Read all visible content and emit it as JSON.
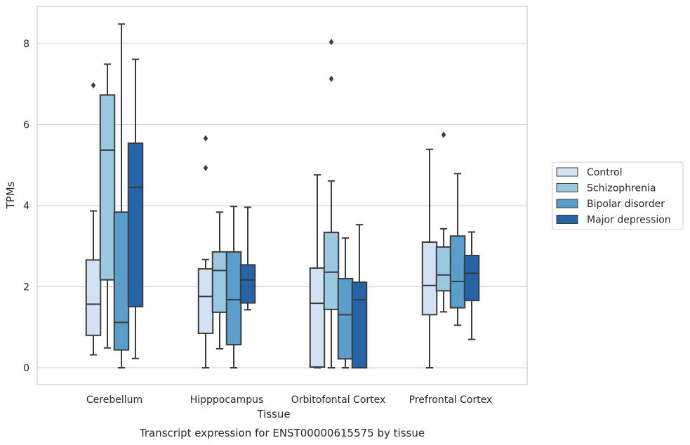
{
  "chart_data": {
    "type": "box",
    "caption": "Transcript expression for ENST00000615575 by tissue",
    "xlabel": "Tissue",
    "ylabel": "TPMs",
    "ylim": [
      -0.4,
      8.9
    ],
    "yticks": [
      0,
      2,
      4,
      6,
      8
    ],
    "grid": true,
    "legend_position": "right",
    "categories": [
      "Cerebellum",
      "Hipppocampus",
      "Orbitofontal Cortex",
      "Prefrontal Cortex"
    ],
    "series": [
      {
        "name": "Control",
        "color": "#d1e2f2",
        "boxes": [
          {
            "whislo": 0.32,
            "q1": 0.8,
            "med": 1.57,
            "q3": 2.66,
            "whishi": 3.87,
            "fliers": [
              6.97
            ]
          },
          {
            "whislo": 0.0,
            "q1": 0.85,
            "med": 1.76,
            "q3": 2.44,
            "whishi": 2.67,
            "fliers": [
              5.66,
              4.93
            ]
          },
          {
            "whislo": 0.0,
            "q1": 0.02,
            "med": 1.59,
            "q3": 2.46,
            "whishi": 4.76,
            "fliers": []
          },
          {
            "whislo": 0.0,
            "q1": 1.31,
            "med": 2.03,
            "q3": 3.1,
            "whishi": 5.39,
            "fliers": []
          }
        ]
      },
      {
        "name": "Schizophrenia",
        "color": "#9ac8e0",
        "boxes": [
          {
            "whislo": 0.49,
            "q1": 2.17,
            "med": 5.37,
            "q3": 6.73,
            "whishi": 7.49,
            "fliers": []
          },
          {
            "whislo": 0.47,
            "q1": 1.37,
            "med": 2.4,
            "q3": 2.86,
            "whishi": 3.84,
            "fliers": []
          },
          {
            "whislo": 0.0,
            "q1": 1.44,
            "med": 2.36,
            "q3": 3.34,
            "whishi": 4.61,
            "fliers": [
              8.04,
              7.13
            ]
          },
          {
            "whislo": 1.38,
            "q1": 1.9,
            "med": 2.29,
            "q3": 2.98,
            "whishi": 3.43,
            "fliers": [
              5.75
            ]
          }
        ]
      },
      {
        "name": "Bipolar disorder",
        "color": "#5a9ecb",
        "boxes": [
          {
            "whislo": 0.0,
            "q1": 0.44,
            "med": 1.12,
            "q3": 3.84,
            "whishi": 8.48,
            "fliers": []
          },
          {
            "whislo": 0.0,
            "q1": 0.57,
            "med": 1.68,
            "q3": 2.86,
            "whishi": 3.98,
            "fliers": []
          },
          {
            "whislo": 0.0,
            "q1": 0.22,
            "med": 1.31,
            "q3": 2.2,
            "whishi": 3.2,
            "fliers": []
          },
          {
            "whislo": 1.05,
            "q1": 1.48,
            "med": 2.13,
            "q3": 3.25,
            "whishi": 4.79,
            "fliers": []
          }
        ]
      },
      {
        "name": "Major depression",
        "color": "#2565a7",
        "boxes": [
          {
            "whislo": 0.23,
            "q1": 1.51,
            "med": 4.45,
            "q3": 5.54,
            "whishi": 7.61,
            "fliers": []
          },
          {
            "whislo": 1.43,
            "q1": 1.6,
            "med": 2.17,
            "q3": 2.54,
            "whishi": 3.96,
            "fliers": []
          },
          {
            "whislo": 0.0,
            "q1": 0.0,
            "med": 1.68,
            "q3": 2.11,
            "whishi": 3.53,
            "fliers": []
          },
          {
            "whislo": 0.7,
            "q1": 1.66,
            "med": 2.33,
            "q3": 2.77,
            "whishi": 3.35,
            "fliers": []
          }
        ]
      }
    ]
  }
}
